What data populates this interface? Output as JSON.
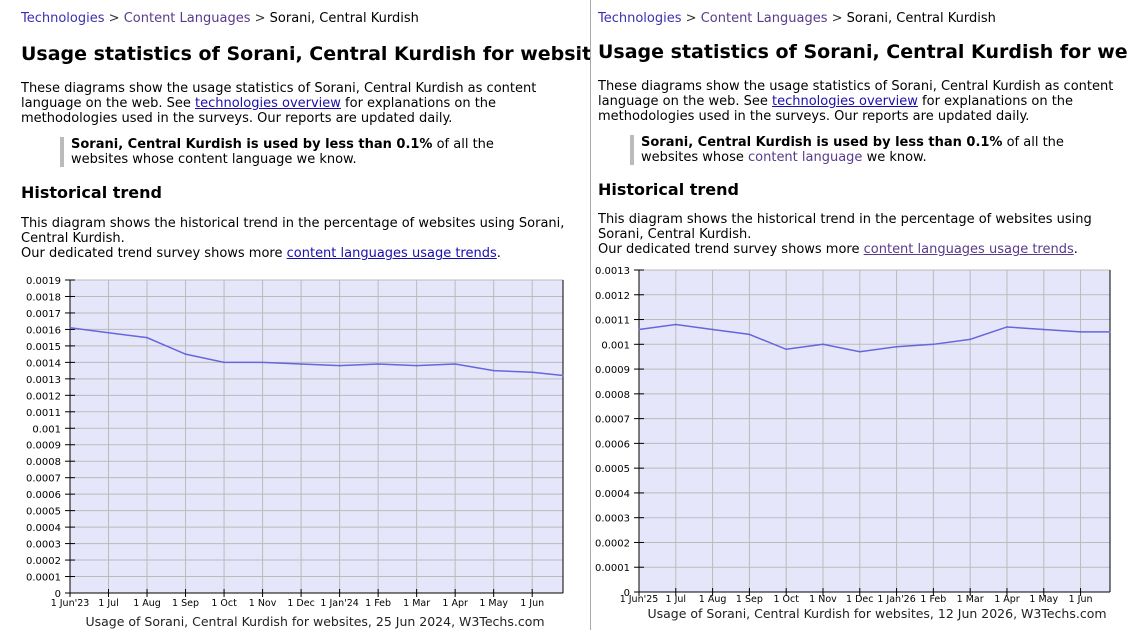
{
  "left": {
    "breadcrumb": {
      "item1": "Technologies",
      "sep": ">",
      "item2": "Content Languages",
      "current": "Sorani, Central Kurdish"
    },
    "title": "Usage statistics of Sorani, Central Kurdish for websites",
    "intro": {
      "before": "These diagrams show the usage statistics of Sorani, Central Kurdish as content language on the web. See ",
      "link": "technologies overview",
      "after": " for explanations on the methodologies used in the surveys. Our reports are updated daily."
    },
    "quote": {
      "bold": "Sorani, Central Kurdish is used by less than 0.1%",
      "rest": " of all the websites whose content language we know."
    },
    "section_title": "Historical trend",
    "trend": {
      "line1": "This diagram shows the historical trend in the percentage of websites using Sorani, Central Kurdish.",
      "line2_before": "Our dedicated trend survey shows more ",
      "line2_link": "content languages usage trends",
      "line2_after": "."
    },
    "chart_data": {
      "type": "line",
      "x": [
        "1 Jun'23",
        "1 Jul",
        "1 Aug",
        "1 Sep",
        "1 Oct",
        "1 Nov",
        "1 Dec",
        "1 Jan'24",
        "1 Feb",
        "1 Mar",
        "1 Apr",
        "1 May",
        "1 Jun",
        "25 Jun"
      ],
      "xticks": [
        "1 Jun'23",
        "1 Jul",
        "1 Aug",
        "1 Sep",
        "1 Oct",
        "1 Nov",
        "1 Dec",
        "1 Jan'24",
        "1 Feb",
        "1 Mar",
        "1 Apr",
        "1 May",
        "1 Jun"
      ],
      "values": [
        0.00161,
        0.00158,
        0.00155,
        0.00145,
        0.0014,
        0.0014,
        0.00139,
        0.00138,
        0.00139,
        0.00138,
        0.00139,
        0.00135,
        0.00134,
        0.00132
      ],
      "yticks": [
        "0",
        "0.0001",
        "0.0002",
        "0.0003",
        "0.0004",
        "0.0005",
        "0.0006",
        "0.0007",
        "0.0008",
        "0.0009",
        "0.001",
        "0.0011",
        "0.0012",
        "0.0013",
        "0.0014",
        "0.0015",
        "0.0016",
        "0.0017",
        "0.0018",
        "0.0019"
      ],
      "ylim": [
        0,
        0.0019
      ],
      "caption": "Usage of Sorani, Central Kurdish for websites, 25 Jun 2024, W3Techs.com",
      "background": "#e6e6fa",
      "line_color": "#6666dd",
      "grid_color": "#bbbbbb"
    }
  },
  "right": {
    "breadcrumb": {
      "item1": "Technologies",
      "sep": ">",
      "item2": "Content Languages",
      "current": "Sorani, Central Kurdish"
    },
    "title": "Usage statistics of Sorani, Central Kurdish for websites",
    "intro": {
      "before": "These diagrams show the usage statistics of Sorani, Central Kurdish as content language on the web. See ",
      "link": "technologies overview",
      "after": " for explanations on the methodologies used in the surveys. Our reports are updated daily."
    },
    "quote": {
      "bold": "Sorani, Central Kurdish is used by less than 0.1%",
      "rest": " of all the websites whose ",
      "link": "content language",
      "after": " we know."
    },
    "section_title": "Historical trend",
    "trend": {
      "line1": "This diagram shows the historical trend in the percentage of websites using Sorani, Central Kurdish.",
      "line2_before": "Our dedicated trend survey shows more ",
      "line2_link": "content languages usage trends",
      "line2_after": "."
    },
    "chart_data": {
      "type": "line",
      "x": [
        "1 Jun'25",
        "1 Jul",
        "1 Aug",
        "1 Sep",
        "1 Oct",
        "1 Nov",
        "1 Dec",
        "1 Jan'26",
        "1 Feb",
        "1 Mar",
        "1 Apr",
        "1 May",
        "1 Jun",
        "12 Jun"
      ],
      "xticks": [
        "1 Jun'25",
        "1 Jul",
        "1 Aug",
        "1 Sep",
        "1 Oct",
        "1 Nov",
        "1 Dec",
        "1 Jan'26",
        "1 Feb",
        "1 Mar",
        "1 Apr",
        "1 May",
        "1 Jun"
      ],
      "values": [
        0.00106,
        0.00108,
        0.00106,
        0.00104,
        0.00098,
        0.001,
        0.00097,
        0.00099,
        0.001,
        0.00102,
        0.00107,
        0.00106,
        0.00105,
        0.00105
      ],
      "yticks": [
        "0",
        "0.0001",
        "0.0002",
        "0.0003",
        "0.0004",
        "0.0005",
        "0.0006",
        "0.0007",
        "0.0008",
        "0.0009",
        "0.001",
        "0.0011",
        "0.0012",
        "0.0013"
      ],
      "ylim": [
        0,
        0.0013
      ],
      "caption": "Usage of Sorani, Central Kurdish for websites, 12 Jun 2026, W3Techs.com",
      "background": "#e6e6fa",
      "line_color": "#6666dd",
      "grid_color": "#bbbbbb"
    }
  }
}
